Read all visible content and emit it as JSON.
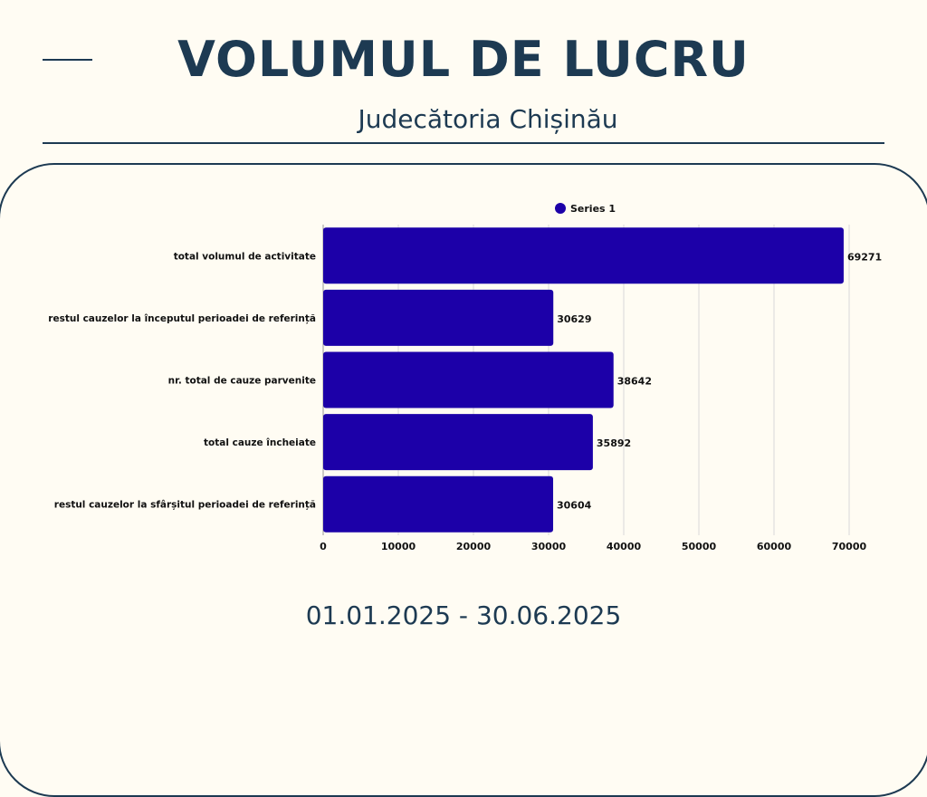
{
  "header": {
    "title": "VOLUMUL DE LUCRU",
    "subtitle": "Judecătoria Chișinău"
  },
  "footer": {
    "date_range": "01.01.2025 - 30.06.2025"
  },
  "colors": {
    "bar": "#1c00a8",
    "text": "#1d3a52",
    "grid": "#d9d9d9",
    "background": "#fffcf3"
  },
  "chart_data": {
    "type": "bar",
    "orientation": "horizontal",
    "categories": [
      "total volumul de activitate",
      "restul cauzelor la începutul perioadei de referință",
      "nr. total de cauze parvenite",
      "total cauze încheiate",
      "restul cauzelor la sfârșitul perioadei de referință"
    ],
    "series": [
      {
        "name": "Series 1",
        "values": [
          69271,
          30629,
          38642,
          35892,
          30604
        ]
      }
    ],
    "data_labels": [
      "69271",
      "30629",
      "38642",
      "35892",
      "30604"
    ],
    "xlim": [
      0,
      70000
    ],
    "xticks": [
      0,
      10000,
      20000,
      30000,
      40000,
      50000,
      60000,
      70000
    ],
    "xtick_labels": [
      "0",
      "10000",
      "20000",
      "30000",
      "40000",
      "50000",
      "60000",
      "70000"
    ],
    "grid": true,
    "legend": "top-center"
  }
}
